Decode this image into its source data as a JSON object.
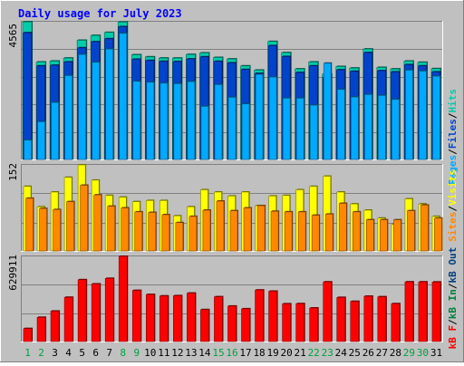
{
  "chart_data": [
    {
      "type": "bar",
      "title": "Daily usage for July 2023",
      "categories": [
        "1",
        "2",
        "3",
        "4",
        "5",
        "6",
        "7",
        "8",
        "9",
        "10",
        "11",
        "12",
        "13",
        "14",
        "15",
        "16",
        "17",
        "18",
        "19",
        "20",
        "21",
        "22",
        "23",
        "24",
        "25",
        "26",
        "27",
        "28",
        "29",
        "30",
        "31"
      ],
      "weekend_days": [
        "1",
        "2",
        "8",
        "9",
        "15",
        "16",
        "22",
        "23",
        "29",
        "30"
      ],
      "ymax_label": "4565",
      "ylim": [
        0,
        4565
      ],
      "series": [
        {
          "name": "Hits",
          "color": "#00ccaa",
          "values": [
            4560,
            3230,
            3260,
            3360,
            3950,
            4110,
            4210,
            4555,
            3470,
            3400,
            3360,
            3360,
            3480,
            3530,
            3380,
            3330,
            3100,
            2960,
            3910,
            3540,
            3000,
            3230,
            2830,
            3080,
            3030,
            3660,
            3050,
            3000,
            3260,
            3220,
            3010
          ]
        },
        {
          "name": "Files",
          "color": "#0044cc",
          "values": [
            4200,
            3100,
            3120,
            3230,
            3700,
            3900,
            4000,
            4400,
            3320,
            3280,
            3250,
            3240,
            3330,
            3400,
            3250,
            3200,
            2980,
            2850,
            3770,
            3410,
            2880,
            3100,
            2730,
            2970,
            2920,
            3540,
            2940,
            2900,
            3140,
            3100,
            2900
          ]
        },
        {
          "name": "Pages",
          "color": "#00aaff",
          "values": [
            640,
            1250,
            1890,
            2780,
            3480,
            3220,
            3660,
            4180,
            2590,
            2560,
            2530,
            2510,
            2580,
            1760,
            2480,
            2060,
            1840,
            2820,
            2730,
            2030,
            2030,
            1800,
            3190,
            2320,
            2070,
            2150,
            2120,
            1990,
            2960,
            2930,
            2760
          ]
        }
      ]
    },
    {
      "type": "bar",
      "ymax_label": "152",
      "ylim": [
        0,
        152
      ],
      "series": [
        {
          "name": "Visits",
          "color": "#ffff00",
          "values": [
            114,
            78,
            104,
            130,
            152,
            125,
            98,
            95,
            87,
            89,
            89,
            62,
            78,
            108,
            104,
            97,
            104,
            80,
            97,
            98,
            108,
            114,
            132,
            104,
            83,
            72,
            58,
            47,
            92,
            83,
            61
          ]
        },
        {
          "name": "Sites",
          "color": "#ff8800",
          "values": [
            93,
            75,
            73,
            87,
            116,
            99,
            79,
            76,
            69,
            68,
            64,
            50,
            61,
            72,
            88,
            71,
            76,
            80,
            70,
            69,
            69,
            63,
            65,
            84,
            69,
            55,
            55,
            55,
            71,
            81,
            58
          ]
        }
      ]
    },
    {
      "type": "bar",
      "ymax_label": "629911",
      "ylim": [
        0,
        629911
      ],
      "series": [
        {
          "name": "kB F",
          "color": "#ff0000",
          "values": [
            96000,
            179000,
            225000,
            327000,
            457000,
            426000,
            467000,
            629911,
            378000,
            348000,
            337000,
            339000,
            358000,
            236000,
            331000,
            262000,
            242000,
            381000,
            372000,
            279000,
            280000,
            248000,
            441000,
            326000,
            297000,
            335000,
            331000,
            280000,
            441000,
            441000,
            440000
          ]
        },
        {
          "name": "kB In",
          "color": "#008040",
          "values": []
        },
        {
          "name": "kB Out",
          "color": "#004080",
          "values": []
        }
      ]
    }
  ],
  "colors": {
    "background": "#c0c0c0",
    "plot_background": "#c0c0c0",
    "gridline": "#808080",
    "title": "#0000ff",
    "weekday_label": "#000000",
    "weekend_label": "#00a040",
    "frame_light": "#ffffff",
    "frame_dark": "#808080"
  }
}
